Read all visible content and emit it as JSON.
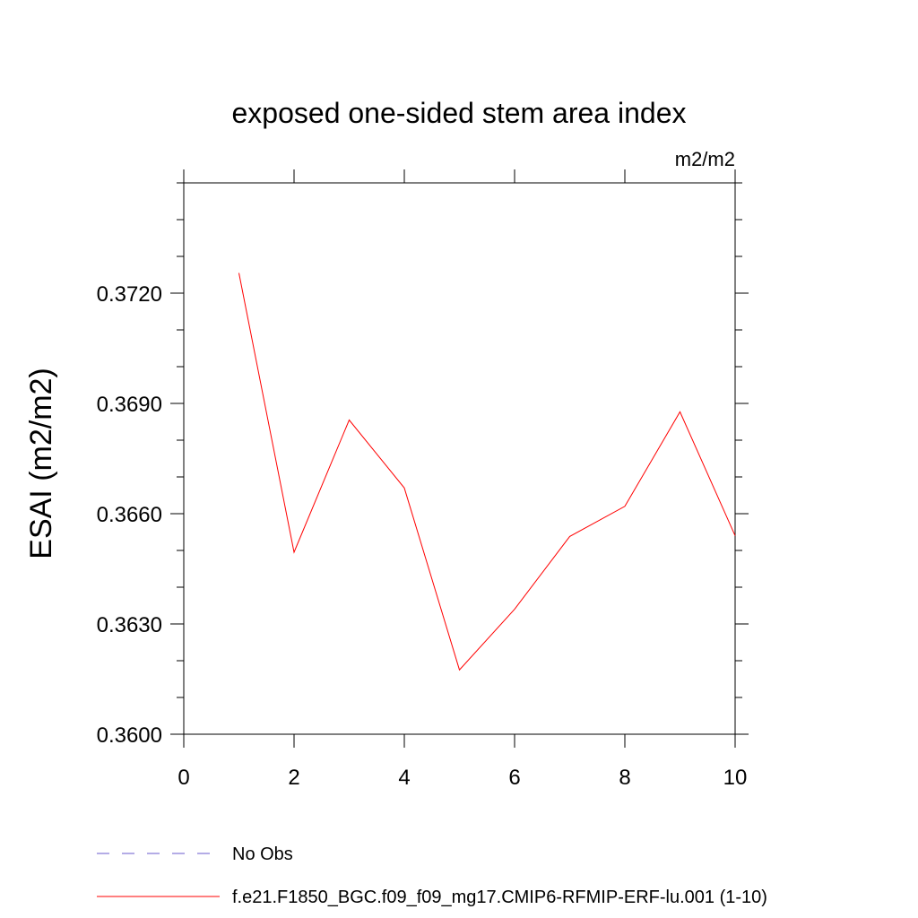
{
  "chart_data": {
    "type": "line",
    "title": "exposed one-sided stem area index",
    "units_label": "m2/m2",
    "xlabel": "",
    "ylabel": "ESAI  (m2/m2)",
    "xlim": [
      0,
      10
    ],
    "ylim": [
      0.36,
      0.375
    ],
    "x_ticks": [
      0,
      2,
      4,
      6,
      8,
      10
    ],
    "x_tick_labels": [
      "0",
      "2",
      "4",
      "6",
      "8",
      "10"
    ],
    "y_ticks": [
      0.36,
      0.363,
      0.366,
      0.369,
      0.372
    ],
    "y_tick_labels": [
      "0.3600",
      "0.3630",
      "0.3660",
      "0.3690",
      "0.3720"
    ],
    "grid": false,
    "legend_position": "bottom",
    "series": [
      {
        "name": "No Obs",
        "color": "#6a5acd",
        "dash": "dashed",
        "x": [],
        "y": []
      },
      {
        "name": "f.e21.F1850_BGC.f09_f09_mg17.CMIP6-RFMIP-ERF-lu.001 (1-10)",
        "color": "#ff0000",
        "dash": "solid",
        "x": [
          1,
          2,
          3,
          4,
          5,
          6,
          7,
          8,
          9,
          10
        ],
        "y": [
          0.37255,
          0.36495,
          0.36855,
          0.3667,
          0.36175,
          0.3634,
          0.36538,
          0.3662,
          0.36877,
          0.3654
        ]
      }
    ]
  }
}
